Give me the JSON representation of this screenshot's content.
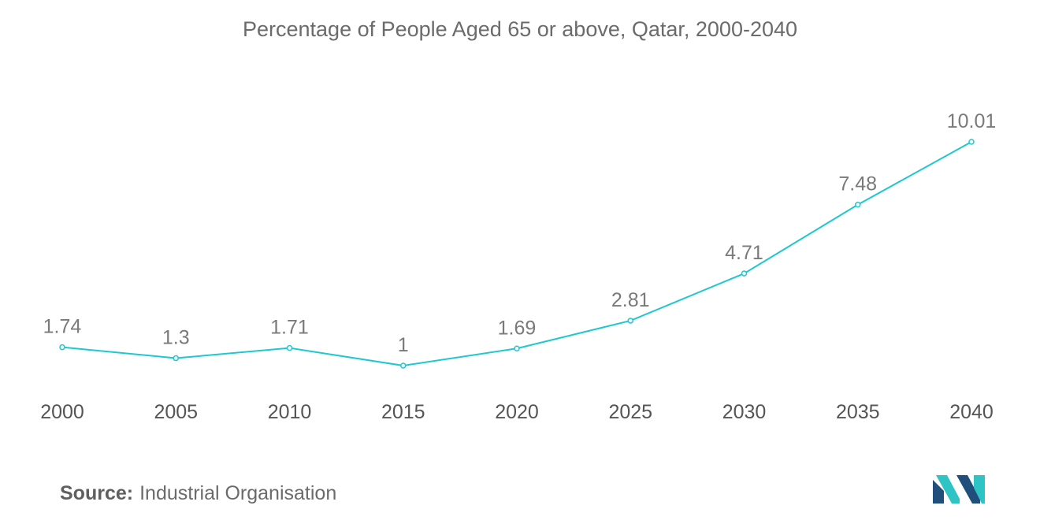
{
  "source": {
    "label": "Source:",
    "text": "Industrial Organisation"
  },
  "logo": {
    "icon": "mordor-intelligence-logo-icon"
  },
  "colors": {
    "line": "#1ec8d0",
    "logo_dark": "#1f4f7a",
    "logo_light": "#2ec4c6"
  },
  "chart_data": {
    "type": "line",
    "title": "Percentage of People Aged 65 or above, Qatar, 2000-2040",
    "xlabel": "",
    "ylabel": "",
    "categories": [
      "2000",
      "2005",
      "2010",
      "2015",
      "2020",
      "2025",
      "2030",
      "2035",
      "2040"
    ],
    "series": [
      {
        "values": [
          1.74,
          1.3,
          1.71,
          1,
          1.69,
          2.81,
          4.71,
          7.48,
          10.01
        ],
        "labels": [
          "1.74",
          "1.3",
          "1.71",
          "1",
          "1.69",
          "2.81",
          "4.71",
          "7.48",
          "10.01"
        ]
      }
    ],
    "grid": false,
    "y_axis_visible": false,
    "data_labels": true
  }
}
